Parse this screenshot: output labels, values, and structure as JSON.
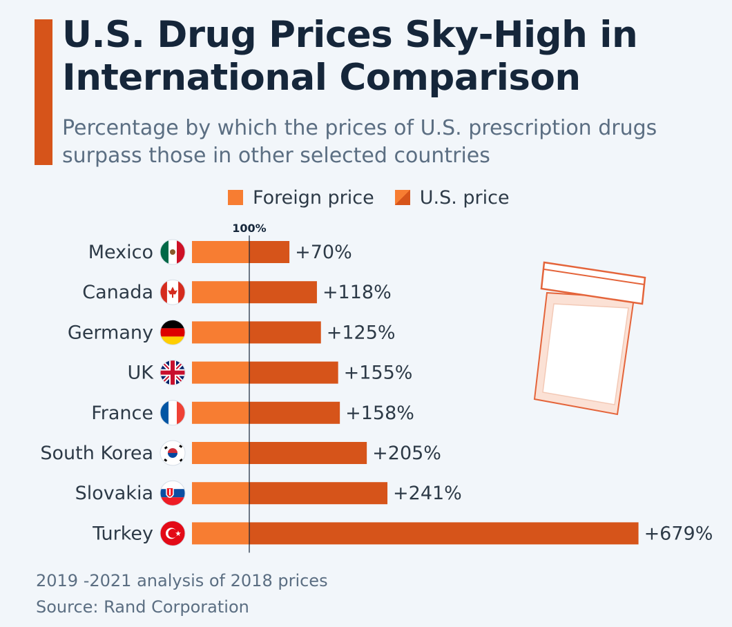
{
  "title": "U.S. Drug Prices Sky-High in International Comparison",
  "subtitle": "Percentage by which the prices of U.S. prescription drugs surpass those in other selected countries",
  "legend": {
    "foreign": "Foreign price",
    "us": "U.S. price"
  },
  "colors": {
    "foreign": "#f77d32",
    "us": "#d6541a",
    "accent": "#d6541a",
    "title": "#15263a"
  },
  "chart_data": {
    "type": "bar",
    "orientation": "horizontal",
    "reference_label": "100%",
    "categories": [
      "Mexico",
      "Canada",
      "Germany",
      "UK",
      "France",
      "South Korea",
      "Slovakia",
      "Turkey"
    ],
    "series": [
      {
        "name": "Foreign price",
        "values": [
          100,
          100,
          100,
          100,
          100,
          100,
          100,
          100
        ]
      },
      {
        "name": "U.S. price",
        "values": [
          170,
          218,
          225,
          255,
          258,
          305,
          341,
          779
        ]
      }
    ],
    "data_labels": [
      "+70%",
      "+118%",
      "+125%",
      "+155%",
      "+158%",
      "+205%",
      "+241%",
      "+679%"
    ],
    "surplus_values": [
      70,
      118,
      125,
      155,
      158,
      205,
      241,
      679
    ],
    "flag_icons": [
      "mexico-flag-icon",
      "canada-flag-icon",
      "germany-flag-icon",
      "uk-flag-icon",
      "france-flag-icon",
      "south-korea-flag-icon",
      "slovakia-flag-icon",
      "turkey-flag-icon"
    ],
    "legend_position": "top-center"
  },
  "footer": {
    "note": "2019 -2021 analysis of 2018 prices",
    "source": "Source: Rand Corporation"
  }
}
